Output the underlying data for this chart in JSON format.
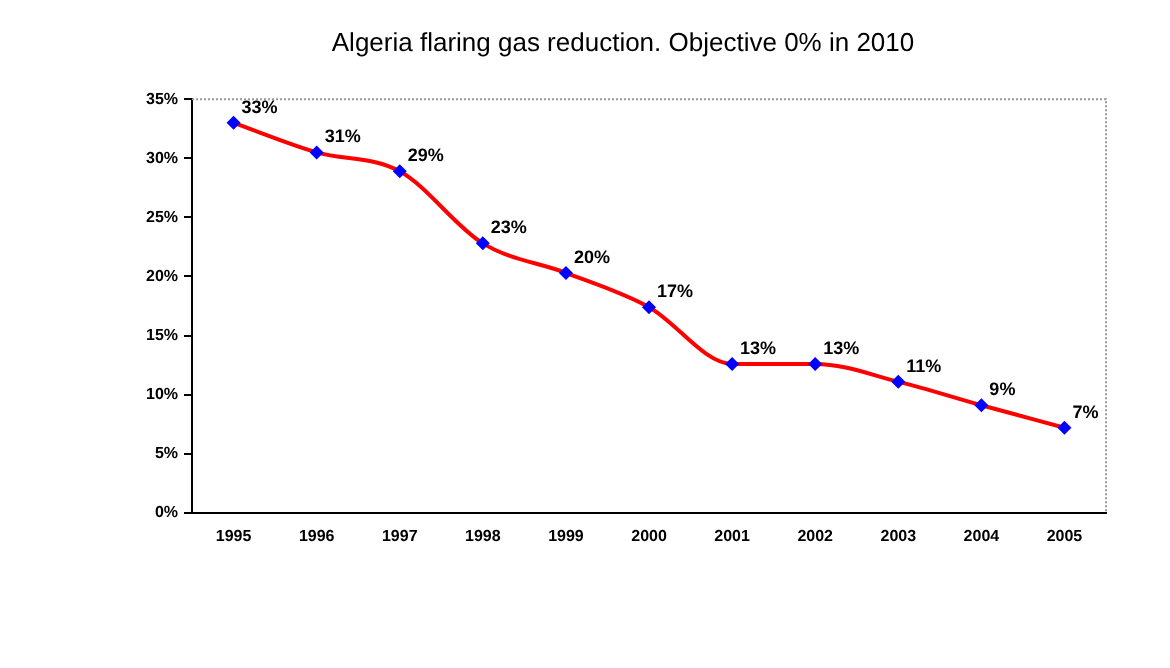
{
  "chart_data": {
    "type": "line",
    "title": "Algeria flaring gas reduction. Objective 0% in 2010",
    "categories": [
      "1995",
      "1996",
      "1997",
      "1998",
      "1999",
      "2000",
      "2001",
      "2002",
      "2003",
      "2004",
      "2005"
    ],
    "series": [
      {
        "color": "#ff0000",
        "values": [
          33.0,
          30.5,
          28.9,
          22.8,
          20.3,
          17.4,
          12.6,
          12.6,
          11.1,
          9.1,
          7.2
        ],
        "value_labels": [
          "33%",
          "31%",
          "29%",
          "23%",
          "20%",
          "17%",
          "13%",
          "13%",
          "11%",
          "9%",
          "7%"
        ],
        "colors": [
          "#0000ff",
          "#0000ff",
          "#0000ff",
          "#0000ff",
          "#0000ff",
          "#0000ff",
          "#0000ff",
          "#0000ff",
          "#0000ff",
          "#0000ff",
          "#0000ff"
        ]
      }
    ],
    "marker": "diamond",
    "line_style": "solid",
    "ylim": [
      0,
      35
    ],
    "yticks": [
      {
        "value": 0,
        "label": "0%"
      },
      {
        "value": 5,
        "label": "5%"
      },
      {
        "value": 10,
        "label": "10%"
      },
      {
        "value": 15,
        "label": "15%"
      },
      {
        "value": 20,
        "label": "20%"
      },
      {
        "value": 25,
        "label": "25%"
      },
      {
        "value": 30,
        "label": "30%"
      },
      {
        "value": 35,
        "label": "35%"
      }
    ],
    "grid": false,
    "legend": false
  }
}
